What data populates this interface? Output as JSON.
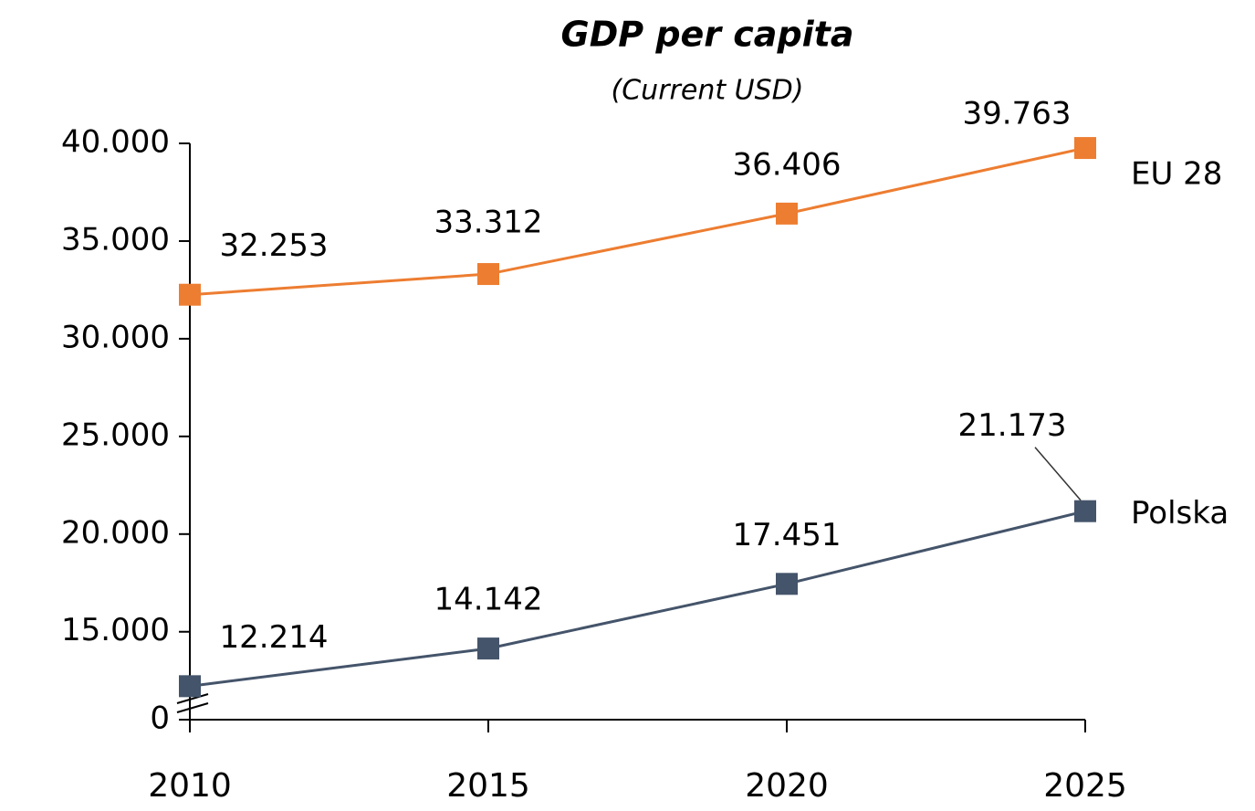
{
  "chart_data": {
    "type": "line",
    "title": "GDP per capita",
    "subtitle": "(Current USD)",
    "categories": [
      "2010",
      "2015",
      "2020",
      "2025"
    ],
    "series": [
      {
        "name": "EU 28",
        "color": "#ed7d31",
        "values": [
          32253,
          33312,
          36406,
          39763
        ],
        "value_labels": [
          "32.253",
          "33.312",
          "36.406",
          "39.763"
        ]
      },
      {
        "name": "Polska",
        "color": "#44546a",
        "values": [
          12214,
          14142,
          17451,
          21173
        ],
        "value_labels": [
          "12.214",
          "14.142",
          "17.451",
          "21.173"
        ]
      }
    ],
    "ylim": [
      10500,
      40000
    ],
    "y_axis_break": true,
    "yticks": [
      {
        "value": 0,
        "label": "0"
      },
      {
        "value": 15000,
        "label": "15.000"
      },
      {
        "value": 20000,
        "label": "20.000"
      },
      {
        "value": 25000,
        "label": "25.000"
      },
      {
        "value": 30000,
        "label": "30.000"
      },
      {
        "value": 35000,
        "label": "35.000"
      },
      {
        "value": 40000,
        "label": "40.000"
      }
    ],
    "grid": false
  }
}
